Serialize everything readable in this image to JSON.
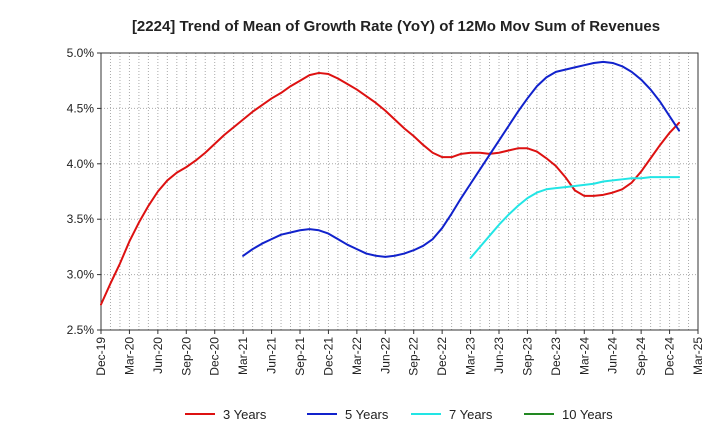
{
  "chart_data": {
    "type": "line",
    "title": "[2224]  Trend of Mean of Growth Rate (YoY) of 12Mo Mov Sum of Revenues",
    "xlabel": "",
    "ylabel": "",
    "ylim": [
      2.5,
      5.0
    ],
    "yticks": [
      "2.5%",
      "3.0%",
      "3.5%",
      "4.0%",
      "4.5%",
      "5.0%"
    ],
    "ytick_values": [
      2.5,
      3.0,
      3.5,
      4.0,
      4.5,
      5.0
    ],
    "xticks": [
      "Dec-19",
      "Mar-20",
      "Jun-20",
      "Sep-20",
      "Dec-20",
      "Mar-21",
      "Jun-21",
      "Sep-21",
      "Dec-21",
      "Mar-22",
      "Jun-22",
      "Sep-22",
      "Dec-22",
      "Mar-23",
      "Jun-23",
      "Sep-23",
      "Dec-23",
      "Mar-24",
      "Jun-24",
      "Sep-24",
      "Dec-24",
      "Mar-25"
    ],
    "x_start": "Dec-19",
    "x_months_total": 63,
    "grid": true,
    "legend_position": "bottom",
    "series": [
      {
        "name": "3 Years",
        "color": "#dd1111",
        "points": [
          [
            0,
            2.73
          ],
          [
            1,
            2.92
          ],
          [
            2,
            3.1
          ],
          [
            3,
            3.3
          ],
          [
            4,
            3.47
          ],
          [
            5,
            3.62
          ],
          [
            6,
            3.75
          ],
          [
            7,
            3.85
          ],
          [
            8,
            3.92
          ],
          [
            9,
            3.97
          ],
          [
            10,
            4.03
          ],
          [
            11,
            4.1
          ],
          [
            12,
            4.18
          ],
          [
            13,
            4.26
          ],
          [
            14,
            4.33
          ],
          [
            15,
            4.4
          ],
          [
            16,
            4.47
          ],
          [
            17,
            4.53
          ],
          [
            18,
            4.59
          ],
          [
            19,
            4.64
          ],
          [
            20,
            4.7
          ],
          [
            21,
            4.75
          ],
          [
            22,
            4.8
          ],
          [
            23,
            4.82
          ],
          [
            24,
            4.81
          ],
          [
            25,
            4.77
          ],
          [
            26,
            4.72
          ],
          [
            27,
            4.67
          ],
          [
            28,
            4.61
          ],
          [
            29,
            4.55
          ],
          [
            30,
            4.48
          ],
          [
            31,
            4.4
          ],
          [
            32,
            4.32
          ],
          [
            33,
            4.25
          ],
          [
            34,
            4.17
          ],
          [
            35,
            4.1
          ],
          [
            36,
            4.06
          ],
          [
            37,
            4.06
          ],
          [
            38,
            4.09
          ],
          [
            39,
            4.1
          ],
          [
            40,
            4.1
          ],
          [
            41,
            4.09
          ],
          [
            42,
            4.1
          ],
          [
            43,
            4.12
          ],
          [
            44,
            4.14
          ],
          [
            45,
            4.14
          ],
          [
            46,
            4.11
          ],
          [
            47,
            4.05
          ],
          [
            48,
            3.98
          ],
          [
            49,
            3.88
          ],
          [
            50,
            3.76
          ],
          [
            51,
            3.71
          ],
          [
            52,
            3.71
          ],
          [
            53,
            3.72
          ],
          [
            54,
            3.74
          ],
          [
            55,
            3.77
          ],
          [
            56,
            3.83
          ],
          [
            57,
            3.93
          ],
          [
            58,
            4.05
          ],
          [
            59,
            4.17
          ],
          [
            60,
            4.28
          ],
          [
            61,
            4.37
          ]
        ]
      },
      {
        "name": "5 Years",
        "color": "#1122cc",
        "points": [
          [
            15,
            3.17
          ],
          [
            16,
            3.23
          ],
          [
            17,
            3.28
          ],
          [
            18,
            3.32
          ],
          [
            19,
            3.36
          ],
          [
            20,
            3.38
          ],
          [
            21,
            3.4
          ],
          [
            22,
            3.41
          ],
          [
            23,
            3.4
          ],
          [
            24,
            3.37
          ],
          [
            25,
            3.32
          ],
          [
            26,
            3.27
          ],
          [
            27,
            3.23
          ],
          [
            28,
            3.19
          ],
          [
            29,
            3.17
          ],
          [
            30,
            3.16
          ],
          [
            31,
            3.17
          ],
          [
            32,
            3.19
          ],
          [
            33,
            3.22
          ],
          [
            34,
            3.26
          ],
          [
            35,
            3.32
          ],
          [
            36,
            3.42
          ],
          [
            37,
            3.55
          ],
          [
            38,
            3.69
          ],
          [
            39,
            3.82
          ],
          [
            40,
            3.95
          ],
          [
            41,
            4.08
          ],
          [
            42,
            4.21
          ],
          [
            43,
            4.34
          ],
          [
            44,
            4.47
          ],
          [
            45,
            4.59
          ],
          [
            46,
            4.7
          ],
          [
            47,
            4.78
          ],
          [
            48,
            4.83
          ],
          [
            49,
            4.85
          ],
          [
            50,
            4.87
          ],
          [
            51,
            4.89
          ],
          [
            52,
            4.91
          ],
          [
            53,
            4.92
          ],
          [
            54,
            4.91
          ],
          [
            55,
            4.88
          ],
          [
            56,
            4.83
          ],
          [
            57,
            4.76
          ],
          [
            58,
            4.67
          ],
          [
            59,
            4.56
          ],
          [
            60,
            4.43
          ],
          [
            61,
            4.3
          ]
        ]
      },
      {
        "name": "7 Years",
        "color": "#22e5e5",
        "points": [
          [
            39,
            3.15
          ],
          [
            40,
            3.25
          ],
          [
            41,
            3.35
          ],
          [
            42,
            3.45
          ],
          [
            43,
            3.54
          ],
          [
            44,
            3.62
          ],
          [
            45,
            3.69
          ],
          [
            46,
            3.74
          ],
          [
            47,
            3.77
          ],
          [
            48,
            3.78
          ],
          [
            49,
            3.79
          ],
          [
            50,
            3.8
          ],
          [
            51,
            3.81
          ],
          [
            52,
            3.82
          ],
          [
            53,
            3.84
          ],
          [
            54,
            3.85
          ],
          [
            55,
            3.86
          ],
          [
            56,
            3.87
          ],
          [
            57,
            3.87
          ],
          [
            58,
            3.88
          ],
          [
            59,
            3.88
          ],
          [
            60,
            3.88
          ],
          [
            61,
            3.88
          ]
        ]
      },
      {
        "name": "10 Years",
        "color": "#228822",
        "points": []
      }
    ]
  }
}
